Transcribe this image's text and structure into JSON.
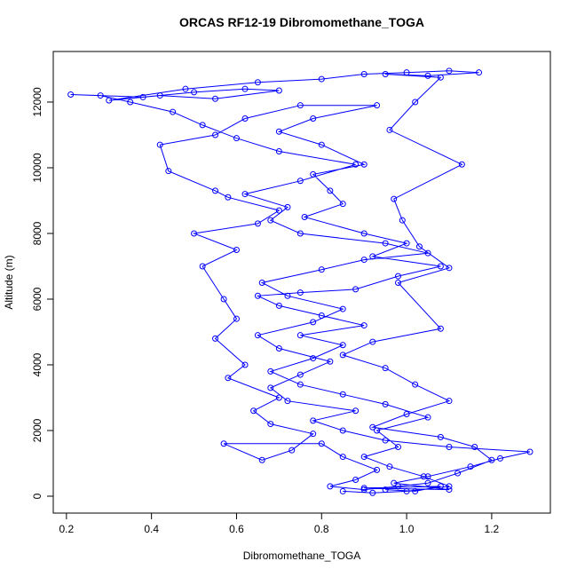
{
  "chart_data": {
    "type": "line",
    "title": "ORCAS RF12-19 Dibromomethane_TOGA",
    "xlabel": "Dibromomethane_TOGA",
    "ylabel": "Altitude (m)",
    "color": "#0000ff",
    "markers": true,
    "xlim": [
      0.169,
      1.338
    ],
    "ylim": [
      -514,
      13540
    ],
    "xticks": [
      0.2,
      0.4,
      0.6,
      0.8,
      {
        "value": 1,
        "label": "1.0"
      },
      1.2
    ],
    "yticks": [
      0,
      2000,
      4000,
      6000,
      8000,
      10000,
      12000
    ],
    "x": [
      0.95,
      1.02,
      1.08,
      0.9,
      1.1,
      0.97,
      1.05,
      1.15,
      1.22,
      1.29,
      1.1,
      0.95,
      0.85,
      0.78,
      0.88,
      0.72,
      0.68,
      0.75,
      0.82,
      0.7,
      0.65,
      0.78,
      0.85,
      0.72,
      0.66,
      0.8,
      0.9,
      1.05,
      0.95,
      0.75,
      0.68,
      0.72,
      0.62,
      0.75,
      0.88,
      0.7,
      0.6,
      0.52,
      0.45,
      0.35,
      0.28,
      0.21,
      0.38,
      0.5,
      0.62,
      0.7,
      0.55,
      0.42,
      0.3,
      0.48,
      0.65,
      0.8,
      0.9,
      1.0,
      1.1,
      1.17,
      1.05,
      0.95,
      1.08,
      1.02,
      0.96,
      1.13,
      0.97,
      0.99,
      1.03,
      1.1,
      0.98,
      1.08,
      0.92,
      0.85,
      0.95,
      1.02,
      1.1,
      1.0,
      0.92,
      1.08,
      1.16,
      1.2,
      1.12,
      1.05,
      0.98,
      0.9,
      0.82,
      0.88,
      0.93,
      0.85,
      0.8,
      0.57,
      0.66,
      0.73,
      0.78,
      0.68,
      0.64,
      0.7,
      0.58,
      0.62,
      0.55,
      0.6,
      0.57,
      0.52,
      0.6,
      0.5,
      0.65,
      0.7,
      0.58,
      0.55,
      0.44,
      0.42,
      0.55,
      0.62,
      0.75,
      0.93,
      0.78,
      0.7,
      0.8,
      0.9,
      0.78,
      0.82,
      0.85,
      0.76,
      0.9,
      1.0,
      0.92,
      1.08,
      0.98,
      0.88,
      0.75,
      0.65,
      0.7,
      0.8,
      0.9,
      0.75,
      0.85,
      0.78,
      0.68,
      0.75,
      0.85,
      0.95,
      1.05,
      0.93,
      0.98,
      0.9,
      0.96,
      1.04,
      1.1,
      1.0,
      0.92,
      0.85
    ],
    "y": [
      200,
      150,
      300,
      250,
      200,
      400,
      600,
      900,
      1150,
      1350,
      1500,
      1700,
      2000,
      2300,
      2600,
      2900,
      3300,
      3700,
      4100,
      4500,
      4900,
      5300,
      5700,
      6100,
      6500,
      6900,
      7200,
      7400,
      7700,
      8000,
      8400,
      8800,
      9200,
      9600,
      10100,
      10500,
      10900,
      11300,
      11700,
      12000,
      12200,
      12230,
      12150,
      12300,
      12400,
      12350,
      12100,
      12200,
      12050,
      12400,
      12600,
      12700,
      12850,
      12900,
      12950,
      12900,
      12800,
      12850,
      12750,
      12000,
      11150,
      10100,
      9050,
      8400,
      7600,
      6950,
      6500,
      5100,
      4700,
      4300,
      3900,
      3400,
      2900,
      2500,
      2100,
      1800,
      1500,
      1100,
      700,
      400,
      300,
      200,
      300,
      500,
      800,
      1200,
      1600,
      1600,
      1100,
      1400,
      1900,
      2200,
      2600,
      3000,
      3600,
      4000,
      4800,
      5400,
      6000,
      7000,
      7500,
      8000,
      8300,
      8700,
      9100,
      9300,
      9900,
      10700,
      11000,
      11500,
      11900,
      11900,
      11500,
      11100,
      10700,
      10100,
      9800,
      9300,
      8900,
      8500,
      8000,
      7700,
      7300,
      7000,
      6700,
      6300,
      6200,
      6100,
      5800,
      5500,
      5200,
      4900,
      4600,
      4200,
      3800,
      3400,
      3100,
      2800,
      2400,
      2000,
      1500,
      1200,
      900,
      600,
      300,
      150,
      100,
      150
    ]
  }
}
